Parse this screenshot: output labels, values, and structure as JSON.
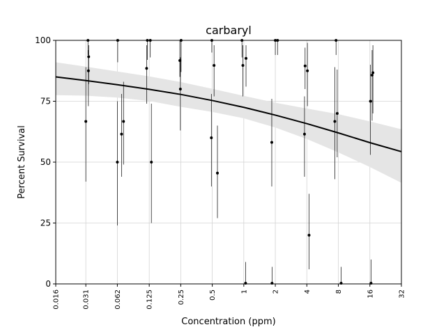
{
  "chart_data": {
    "type": "scatter",
    "title": "carbaryl",
    "xlabel": "Concentration (ppm)",
    "ylabel": "Percent Survival",
    "x_scale": "log2",
    "xlim": [
      0.016,
      32
    ],
    "ylim": [
      0,
      100
    ],
    "x_tick_values": [
      0.016,
      0.031,
      0.062,
      0.125,
      0.25,
      0.5,
      1,
      2,
      4,
      8,
      16,
      32
    ],
    "x_tick_labels": [
      "0.016",
      "0.031",
      "0.062",
      "0.125",
      "0.25",
      "0.5",
      "1",
      "2",
      "4",
      "8",
      "16",
      "32"
    ],
    "y_tick_values": [
      0,
      25,
      50,
      75,
      100
    ],
    "y_tick_labels": [
      "0",
      "25",
      "50",
      "75",
      "100"
    ],
    "grid": true,
    "points": [
      {
        "x": 0.031,
        "y": 66.7,
        "lo": 42,
        "hi": 89
      },
      {
        "x": 0.0325,
        "y": 100,
        "lo": 94,
        "hi": 100
      },
      {
        "x": 0.0328,
        "y": 87.5,
        "lo": 73,
        "hi": 96
      },
      {
        "x": 0.033,
        "y": 93.3,
        "lo": 82,
        "hi": 98
      },
      {
        "x": 0.062,
        "y": 50,
        "lo": 24,
        "hi": 75
      },
      {
        "x": 0.0625,
        "y": 100,
        "lo": 91,
        "hi": 100
      },
      {
        "x": 0.068,
        "y": 61.5,
        "lo": 44,
        "hi": 78
      },
      {
        "x": 0.071,
        "y": 66.7,
        "lo": 49,
        "hi": 83
      },
      {
        "x": 0.118,
        "y": 88.5,
        "lo": 74,
        "hi": 98
      },
      {
        "x": 0.12,
        "y": 100,
        "lo": 92,
        "hi": 100
      },
      {
        "x": 0.128,
        "y": 100,
        "lo": 93,
        "hi": 100
      },
      {
        "x": 0.131,
        "y": 50,
        "lo": 25,
        "hi": 74
      },
      {
        "x": 0.245,
        "y": 91.7,
        "lo": 85,
        "hi": 100
      },
      {
        "x": 0.248,
        "y": 80,
        "lo": 63,
        "hi": 93
      },
      {
        "x": 0.252,
        "y": 100,
        "lo": 87,
        "hi": 100
      },
      {
        "x": 0.49,
        "y": 60,
        "lo": 40,
        "hi": 78
      },
      {
        "x": 0.495,
        "y": 100,
        "lo": 95,
        "hi": 100
      },
      {
        "x": 0.52,
        "y": 89.7,
        "lo": 77,
        "hi": 98
      },
      {
        "x": 0.56,
        "y": 45.5,
        "lo": 27,
        "hi": 65
      },
      {
        "x": 0.96,
        "y": 100,
        "lo": 93,
        "hi": 100
      },
      {
        "x": 0.98,
        "y": 89.7,
        "lo": 77,
        "hi": 98
      },
      {
        "x": 1.04,
        "y": 0.3,
        "lo": 0,
        "hi": 9
      },
      {
        "x": 1.05,
        "y": 92.6,
        "lo": 81,
        "hi": 98
      },
      {
        "x": 1.85,
        "y": 58.1,
        "lo": 40,
        "hi": 76
      },
      {
        "x": 1.86,
        "y": 0.3,
        "lo": 0,
        "hi": 7
      },
      {
        "x": 2.0,
        "y": 100,
        "lo": 94,
        "hi": 100
      },
      {
        "x": 2.1,
        "y": 100,
        "lo": 94,
        "hi": 100
      },
      {
        "x": 3.8,
        "y": 61.5,
        "lo": 44,
        "hi": 77
      },
      {
        "x": 3.85,
        "y": 89.5,
        "lo": 80,
        "hi": 97
      },
      {
        "x": 4.05,
        "y": 87.5,
        "lo": 73,
        "hi": 99
      },
      {
        "x": 4.2,
        "y": 20,
        "lo": 6,
        "hi": 37
      },
      {
        "x": 7.4,
        "y": 66.7,
        "lo": 43,
        "hi": 89
      },
      {
        "x": 7.6,
        "y": 100,
        "lo": 94,
        "hi": 100
      },
      {
        "x": 7.8,
        "y": 70,
        "lo": 52,
        "hi": 88
      },
      {
        "x": 8.5,
        "y": 0.3,
        "lo": 0,
        "hi": 7
      },
      {
        "x": 16.2,
        "y": 75,
        "lo": 53,
        "hi": 90
      },
      {
        "x": 16.4,
        "y": 0.3,
        "lo": 0,
        "hi": 10
      },
      {
        "x": 16.8,
        "y": 85.7,
        "lo": 67,
        "hi": 96
      },
      {
        "x": 17.1,
        "y": 86.7,
        "lo": 70,
        "hi": 98
      }
    ],
    "fit_line": {
      "x": [
        0.016,
        0.031,
        0.062,
        0.125,
        0.25,
        0.5,
        1,
        2,
        4,
        8,
        16,
        32
      ],
      "y": [
        85,
        83.5,
        81.8,
        79.9,
        77.8,
        75.3,
        72.5,
        69.3,
        65.8,
        62,
        58,
        54.3
      ]
    },
    "confidence_band": {
      "x": [
        0.016,
        0.031,
        0.062,
        0.125,
        0.25,
        0.5,
        1,
        2,
        4,
        8,
        16,
        32
      ],
      "upper": [
        91,
        89.2,
        87.2,
        85.2,
        82.9,
        80.1,
        77.2,
        74.4,
        72,
        69.7,
        66.7,
        63.5
      ],
      "lower": [
        77.5,
        77.3,
        76.5,
        75.1,
        72.7,
        70.6,
        68,
        64.2,
        59.5,
        54,
        48,
        41.5
      ]
    },
    "colors": {
      "points": "#000000",
      "fit_line": "#000000",
      "band": "#e5e5e5",
      "grid": "#d3d3d3",
      "errorbar": "#000000"
    }
  }
}
